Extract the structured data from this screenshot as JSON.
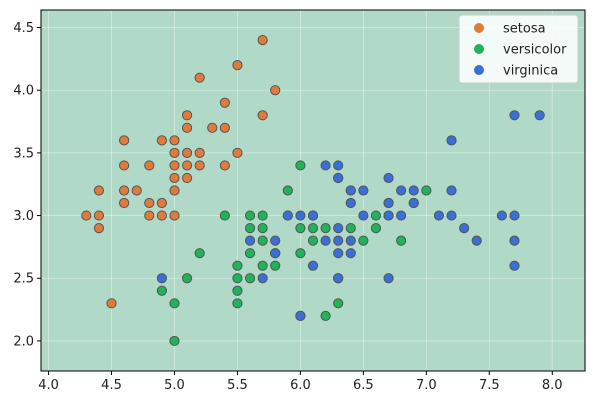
{
  "chart_data": {
    "type": "scatter",
    "title": "",
    "xlabel": "",
    "ylabel": "",
    "xlim": [
      3.94,
      8.26
    ],
    "ylim": [
      1.76,
      4.64
    ],
    "xticks": [
      "4.0",
      "4.5",
      "5.0",
      "5.5",
      "6.0",
      "6.5",
      "7.0",
      "7.5",
      "8.0"
    ],
    "yticks": [
      "2.0",
      "2.5",
      "3.0",
      "3.5",
      "4.0",
      "4.5"
    ],
    "grid": true,
    "legend_position": "top-right",
    "background_color": "#b0d9c8",
    "series": [
      {
        "name": "setosa",
        "color": "#e07b3c",
        "points": [
          [
            4.3,
            3.0
          ],
          [
            4.4,
            2.9
          ],
          [
            4.4,
            3.0
          ],
          [
            4.4,
            3.2
          ],
          [
            4.5,
            2.3
          ],
          [
            4.6,
            3.1
          ],
          [
            4.6,
            3.2
          ],
          [
            4.6,
            3.4
          ],
          [
            4.6,
            3.6
          ],
          [
            4.7,
            3.2
          ],
          [
            4.8,
            3.0
          ],
          [
            4.8,
            3.1
          ],
          [
            4.8,
            3.4
          ],
          [
            4.9,
            3.0
          ],
          [
            4.9,
            3.1
          ],
          [
            4.9,
            3.6
          ],
          [
            5.0,
            3.0
          ],
          [
            5.0,
            3.2
          ],
          [
            5.0,
            3.3
          ],
          [
            5.0,
            3.4
          ],
          [
            5.0,
            3.5
          ],
          [
            5.0,
            3.6
          ],
          [
            5.1,
            3.3
          ],
          [
            5.1,
            3.4
          ],
          [
            5.1,
            3.5
          ],
          [
            5.1,
            3.7
          ],
          [
            5.1,
            3.8
          ],
          [
            5.2,
            3.4
          ],
          [
            5.2,
            3.5
          ],
          [
            5.2,
            4.1
          ],
          [
            5.3,
            3.7
          ],
          [
            5.4,
            3.4
          ],
          [
            5.4,
            3.7
          ],
          [
            5.4,
            3.9
          ],
          [
            5.5,
            3.5
          ],
          [
            5.5,
            4.2
          ],
          [
            5.7,
            3.8
          ],
          [
            5.7,
            4.4
          ],
          [
            5.8,
            4.0
          ]
        ]
      },
      {
        "name": "versicolor",
        "color": "#1fb35a",
        "points": [
          [
            4.9,
            2.4
          ],
          [
            5.0,
            2.0
          ],
          [
            5.0,
            2.3
          ],
          [
            5.1,
            2.5
          ],
          [
            5.2,
            2.7
          ],
          [
            5.4,
            3.0
          ],
          [
            5.5,
            2.3
          ],
          [
            5.5,
            2.4
          ],
          [
            5.5,
            2.5
          ],
          [
            5.5,
            2.6
          ],
          [
            5.6,
            2.5
          ],
          [
            5.6,
            2.7
          ],
          [
            5.6,
            2.9
          ],
          [
            5.6,
            3.0
          ],
          [
            5.7,
            2.6
          ],
          [
            5.7,
            2.8
          ],
          [
            5.7,
            2.9
          ],
          [
            5.7,
            3.0
          ],
          [
            5.8,
            2.6
          ],
          [
            5.8,
            2.7
          ],
          [
            5.9,
            3.0
          ],
          [
            5.9,
            3.2
          ],
          [
            6.0,
            2.2
          ],
          [
            6.0,
            2.7
          ],
          [
            6.0,
            2.9
          ],
          [
            6.0,
            3.4
          ],
          [
            6.1,
            2.8
          ],
          [
            6.1,
            2.9
          ],
          [
            6.1,
            3.0
          ],
          [
            6.2,
            2.2
          ],
          [
            6.2,
            2.9
          ],
          [
            6.3,
            2.3
          ],
          [
            6.3,
            2.5
          ],
          [
            6.3,
            3.3
          ],
          [
            6.4,
            2.9
          ],
          [
            6.4,
            3.2
          ],
          [
            6.5,
            2.8
          ],
          [
            6.6,
            2.9
          ],
          [
            6.6,
            3.0
          ],
          [
            6.7,
            3.0
          ],
          [
            6.7,
            3.1
          ],
          [
            6.8,
            2.8
          ],
          [
            6.9,
            3.1
          ],
          [
            7.0,
            3.2
          ]
        ]
      },
      {
        "name": "virginica",
        "color": "#3a6fd8",
        "points": [
          [
            4.9,
            2.5
          ],
          [
            5.6,
            2.8
          ],
          [
            5.7,
            2.5
          ],
          [
            5.8,
            2.7
          ],
          [
            5.8,
            2.8
          ],
          [
            5.9,
            3.0
          ],
          [
            6.0,
            2.2
          ],
          [
            6.0,
            3.0
          ],
          [
            6.1,
            2.6
          ],
          [
            6.1,
            3.0
          ],
          [
            6.2,
            2.8
          ],
          [
            6.2,
            3.4
          ],
          [
            6.3,
            2.5
          ],
          [
            6.3,
            2.7
          ],
          [
            6.3,
            2.8
          ],
          [
            6.3,
            2.9
          ],
          [
            6.3,
            3.3
          ],
          [
            6.3,
            3.4
          ],
          [
            6.4,
            2.7
          ],
          [
            6.4,
            2.8
          ],
          [
            6.4,
            3.1
          ],
          [
            6.4,
            3.2
          ],
          [
            6.5,
            3.0
          ],
          [
            6.5,
            3.2
          ],
          [
            6.7,
            2.5
          ],
          [
            6.7,
            3.0
          ],
          [
            6.7,
            3.1
          ],
          [
            6.7,
            3.3
          ],
          [
            6.8,
            3.0
          ],
          [
            6.8,
            3.2
          ],
          [
            6.9,
            3.1
          ],
          [
            6.9,
            3.2
          ],
          [
            7.1,
            3.0
          ],
          [
            7.2,
            3.0
          ],
          [
            7.2,
            3.2
          ],
          [
            7.2,
            3.6
          ],
          [
            7.3,
            2.9
          ],
          [
            7.4,
            2.8
          ],
          [
            7.6,
            3.0
          ],
          [
            7.7,
            2.6
          ],
          [
            7.7,
            2.8
          ],
          [
            7.7,
            3.0
          ],
          [
            7.7,
            3.8
          ],
          [
            7.9,
            3.8
          ]
        ]
      }
    ]
  }
}
